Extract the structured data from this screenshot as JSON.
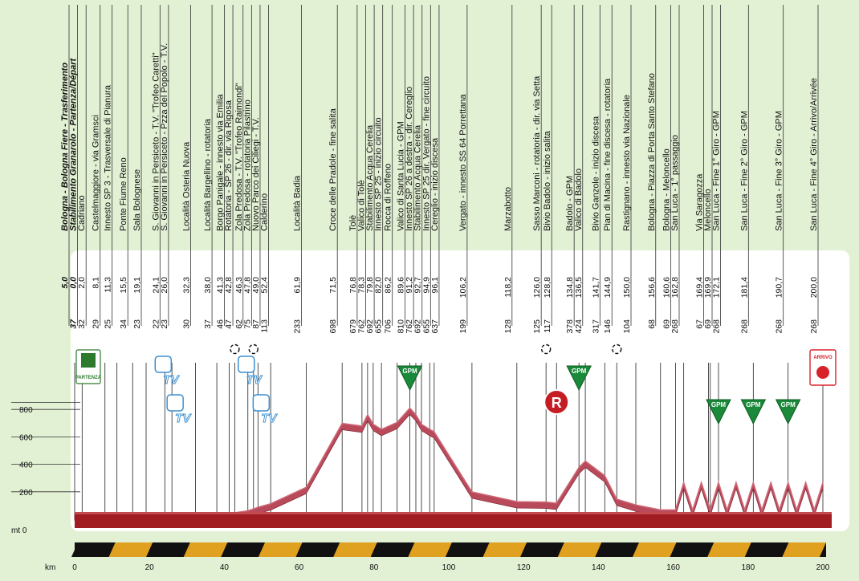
{
  "chart_data": {
    "type": "area",
    "title": "",
    "ylabel_unit": "mt",
    "xlabel_unit": "km",
    "xlim": [
      0,
      200
    ],
    "ylim": [
      0,
      1000
    ],
    "x_ticks": [
      "0",
      "20",
      "40",
      "60",
      "80",
      "100",
      "120",
      "140",
      "160",
      "180",
      "200"
    ],
    "y_ticks": [
      "0",
      "200",
      "400",
      "600",
      "800"
    ],
    "y_zero_label": "mt 0",
    "x_axis_label": "km",
    "waypoints": [
      {
        "name": "Bologna - Bologna Fiere - Trasferimento",
        "alt": "",
        "km": "5,0",
        "style": "bold"
      },
      {
        "name": "Stabilimento Granarolo - Partenza/Départ",
        "alt": "37",
        "km": "0,0",
        "style": "bold"
      },
      {
        "name": "Cadriano",
        "alt": "32",
        "km": "2,0"
      },
      {
        "name": "Castelmaggiore - via Gramsci",
        "alt": "29",
        "km": "8,1"
      },
      {
        "name": "Innesto SP 3 - Trasversale di Pianura",
        "alt": "25",
        "km": "11,3"
      },
      {
        "name": "Ponte Fiume Reno",
        "alt": "34",
        "km": "15,5"
      },
      {
        "name": "Sala Bolognese",
        "alt": "23",
        "km": "19,1"
      },
      {
        "name": "S. Giovanni in Persiceto - T.V. \"Trofeo Caretti\"",
        "alt": "22",
        "km": "24,1"
      },
      {
        "name": "S. Giovanni in Persiceto - Pzza del Popolo - T.V.",
        "alt": "23",
        "km": "26,0"
      },
      {
        "name": "Località Osteria Nuova",
        "alt": "30",
        "km": "32,3"
      },
      {
        "name": "Località Bargellino - rotatoria",
        "alt": "37",
        "km": "38,0"
      },
      {
        "name": "Borgo Panigale - innesto via Emilia",
        "alt": "46",
        "km": "41,3"
      },
      {
        "name": "Rotatoria - SP 26 - dir. via Rigosa",
        "alt": "47",
        "km": "42,8"
      },
      {
        "name": "Zola Predosa - T.V. \"Trofeo Raimondi\"",
        "alt": "62",
        "km": "46,3"
      },
      {
        "name": "Zola Predosa - rotatoria Pilastrino",
        "alt": "75",
        "km": "47,8"
      },
      {
        "name": "Nuovo Parco dei Ciliegi - T.V.",
        "alt": "87",
        "km": "49,0"
      },
      {
        "name": "Calderino",
        "alt": "113",
        "km": "52,4"
      },
      {
        "name": "Località Badia",
        "alt": "233",
        "km": "61,9"
      },
      {
        "name": "Croce delle Pradole - fine salita",
        "alt": "698",
        "km": "71,5"
      },
      {
        "name": "Tolè",
        "alt": "679",
        "km": "76,8"
      },
      {
        "name": "Valico di Tolè",
        "alt": "762",
        "km": "78,3"
      },
      {
        "name": "Stabilimento Acqua Cerelia",
        "alt": "692",
        "km": "79,8"
      },
      {
        "name": "Innesto SP 25 - inizio circuito",
        "alt": "655",
        "km": "82,0"
      },
      {
        "name": "Rocca di Roffeno",
        "alt": "706",
        "km": "86,2"
      },
      {
        "name": "Valico di Santa Lucia - GPM",
        "alt": "810",
        "km": "89,6"
      },
      {
        "name": "Innesto SP 26 a destra - dir. Cereglio",
        "alt": "762",
        "km": "91,2"
      },
      {
        "name": "Stabilimento Acqua Cerelia",
        "alt": "692",
        "km": "92,7"
      },
      {
        "name": "Innesto SP 25 dir. Vergato - fine circuito",
        "alt": "655",
        "km": "94,9"
      },
      {
        "name": "Cereglio - inizio discesa",
        "alt": "637",
        "km": "96,1"
      },
      {
        "name": "Vergato - innesto SS 64 Porrettana",
        "alt": "199",
        "km": "106,2"
      },
      {
        "name": "Marzabotto",
        "alt": "128",
        "km": "118,2"
      },
      {
        "name": "Sasso Marconi - rotatoria - dir. via Setta",
        "alt": "125",
        "km": "126,0"
      },
      {
        "name": "Bivio Badolo - inizio salita",
        "alt": "117",
        "km": "128,8"
      },
      {
        "name": "Badolo - GPM",
        "alt": "378",
        "km": "134,8"
      },
      {
        "name": "Valico di Badolo",
        "alt": "424",
        "km": "136,5"
      },
      {
        "name": "Bivio Ganzole - inizio discesa",
        "alt": "317",
        "km": "141,7"
      },
      {
        "name": "Pian di Macina - fine discesa - rotatoria",
        "alt": "146",
        "km": "144,9"
      },
      {
        "name": "Rastignano - innesto via Nazionale",
        "alt": "104",
        "km": "150,0"
      },
      {
        "name": "Bologna - Piazza di Porta Santo Stefano",
        "alt": "68",
        "km": "156,6"
      },
      {
        "name": "Bologna - Meloncello",
        "alt": "69",
        "km": "160,6"
      },
      {
        "name": "San Luca - 1° passaggio",
        "alt": "268",
        "km": "162,8"
      },
      {
        "name": "Via Saragozza",
        "alt": "67",
        "km": "169,4"
      },
      {
        "name": "Meloncello",
        "alt": "69",
        "km": "169,9"
      },
      {
        "name": "San Luca - Fine 1° Giro - GPM",
        "alt": "268",
        "km": "172,1"
      },
      {
        "name": "San Luca - Fine 2° Giro - GPM",
        "alt": "268",
        "km": "181,4"
      },
      {
        "name": "San Luca - Fine 3° Giro - GPM",
        "alt": "268",
        "km": "190,7"
      },
      {
        "name": "San Luca - Fine 4° Giro - Arrivo/Arrivée",
        "alt": "268",
        "km": "200,0"
      }
    ],
    "series": [
      {
        "x": [
          0,
          2,
          8.1,
          11.3,
          15.5,
          19.1,
          24.1,
          26,
          32.3,
          38,
          41.3,
          42.8,
          46.3,
          47.8,
          49,
          52.4,
          61.9,
          71.5,
          76.8,
          78.3,
          79.8,
          82,
          86.2,
          89.6,
          91.2,
          92.7,
          94.9,
          96.1,
          106.2,
          118.2,
          126,
          128.8,
          134.8,
          136.5,
          141.7,
          144.9,
          150,
          156.6,
          160.6,
          162.8,
          165.2,
          167.5,
          169.9,
          172.1,
          174.4,
          176.8,
          179.1,
          181.4,
          183.7,
          186.1,
          188.4,
          190.7,
          193,
          195.4,
          197.7,
          200
        ],
        "y": [
          37,
          32,
          29,
          25,
          34,
          23,
          22,
          23,
          30,
          37,
          46,
          47,
          62,
          75,
          87,
          113,
          233,
          698,
          679,
          762,
          692,
          655,
          706,
          810,
          762,
          692,
          655,
          637,
          199,
          128,
          125,
          117,
          378,
          424,
          317,
          146,
          104,
          68,
          69,
          268,
          67,
          268,
          69,
          268,
          67,
          268,
          69,
          268,
          67,
          268,
          69,
          268,
          67,
          268,
          69,
          268
        ]
      }
    ],
    "markers": {
      "start_label": "PARTENZA",
      "finish_label": "ARRIVO",
      "gpm_label": "GPM",
      "tv_label": "TV",
      "refuel_label": "R",
      "gpm_km": [
        89.6,
        134.8,
        172.1,
        181.4,
        190.7
      ],
      "tv_km": [
        24.1,
        26,
        46.3,
        49
      ],
      "refuel_km": [
        128.8
      ],
      "roundabout_km": [
        42.8,
        47.8,
        126,
        144.9
      ]
    },
    "colors": {
      "profile": "#b84a5a",
      "profile_top": "#d06a78",
      "base": "#a01c20",
      "background": "#e2f0d4",
      "gpm": "#1a8a3a",
      "tv": "#3b8fd0",
      "finish": "#d8222a"
    }
  }
}
